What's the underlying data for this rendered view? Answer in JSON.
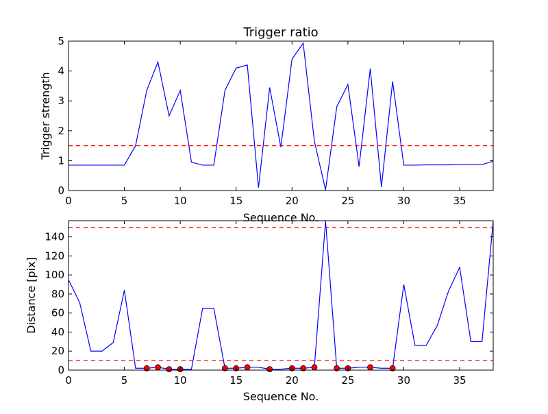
{
  "chart_data": [
    {
      "type": "line",
      "title": "Trigger ratio",
      "xlabel": "Sequence No.",
      "ylabel": "Trigger strength",
      "xlim": [
        0,
        38
      ],
      "ylim": [
        0,
        5
      ],
      "xticks": [
        0,
        5,
        10,
        15,
        20,
        25,
        30,
        35
      ],
      "yticks": [
        0,
        1,
        2,
        3,
        4,
        5
      ],
      "line_color": "#0000ff",
      "threshold": 1.5,
      "threshold_color": "#ff0000",
      "series": [
        {
          "x": [
            0,
            1,
            2,
            3,
            4,
            5,
            6,
            7,
            8,
            9,
            10,
            11,
            12,
            13,
            14,
            15,
            16,
            17,
            18,
            19,
            20,
            21,
            22,
            23,
            24,
            25,
            26,
            27,
            28,
            29,
            30,
            31,
            32,
            33,
            34,
            35,
            36,
            37,
            38
          ],
          "values": [
            0.85,
            0.85,
            0.85,
            0.85,
            0.85,
            0.85,
            1.5,
            3.35,
            4.3,
            2.5,
            3.35,
            0.95,
            0.85,
            0.85,
            3.35,
            4.1,
            4.2,
            0.1,
            3.45,
            1.45,
            4.4,
            4.93,
            1.65,
            0.02,
            2.8,
            3.55,
            0.8,
            4.08,
            0.12,
            3.65,
            0.85,
            0.85,
            0.86,
            0.86,
            0.86,
            0.87,
            0.87,
            0.87,
            0.98
          ]
        }
      ]
    },
    {
      "type": "line",
      "title": "",
      "xlabel": "Sequence No.",
      "ylabel": "Distance [pix]",
      "xlim": [
        0,
        38
      ],
      "ylim": [
        0,
        157
      ],
      "xticks": [
        0,
        5,
        10,
        15,
        20,
        25,
        30,
        35
      ],
      "yticks": [
        0,
        20,
        40,
        60,
        80,
        100,
        120,
        140
      ],
      "line_color": "#0000ff",
      "thresholds": [
        10,
        150
      ],
      "threshold_color": "#ff0000",
      "marker_color": "#ff0000",
      "series": [
        {
          "x": [
            0,
            1,
            2,
            3,
            4,
            5,
            6,
            7,
            8,
            9,
            10,
            11,
            12,
            13,
            14,
            15,
            16,
            17,
            18,
            19,
            20,
            21,
            22,
            23,
            24,
            25,
            26,
            27,
            28,
            29,
            30,
            31,
            32,
            33,
            34,
            35,
            36,
            37,
            38
          ],
          "values": [
            95,
            71,
            20,
            20,
            29,
            84,
            2,
            2,
            3,
            1,
            1,
            1,
            65,
            65,
            2,
            2,
            3,
            3,
            1,
            1,
            2,
            2,
            3,
            157,
            2,
            2,
            3,
            3,
            2,
            2,
            90,
            26,
            26,
            47,
            83,
            108,
            30,
            30,
            157
          ]
        }
      ],
      "markers": {
        "x": [
          7,
          8,
          9,
          10,
          14,
          15,
          16,
          18,
          20,
          21,
          22,
          24,
          25,
          27,
          29
        ],
        "values": [
          2,
          3,
          1,
          1,
          2,
          2,
          3,
          1,
          2,
          2,
          3,
          2,
          2,
          3,
          2
        ]
      }
    }
  ]
}
